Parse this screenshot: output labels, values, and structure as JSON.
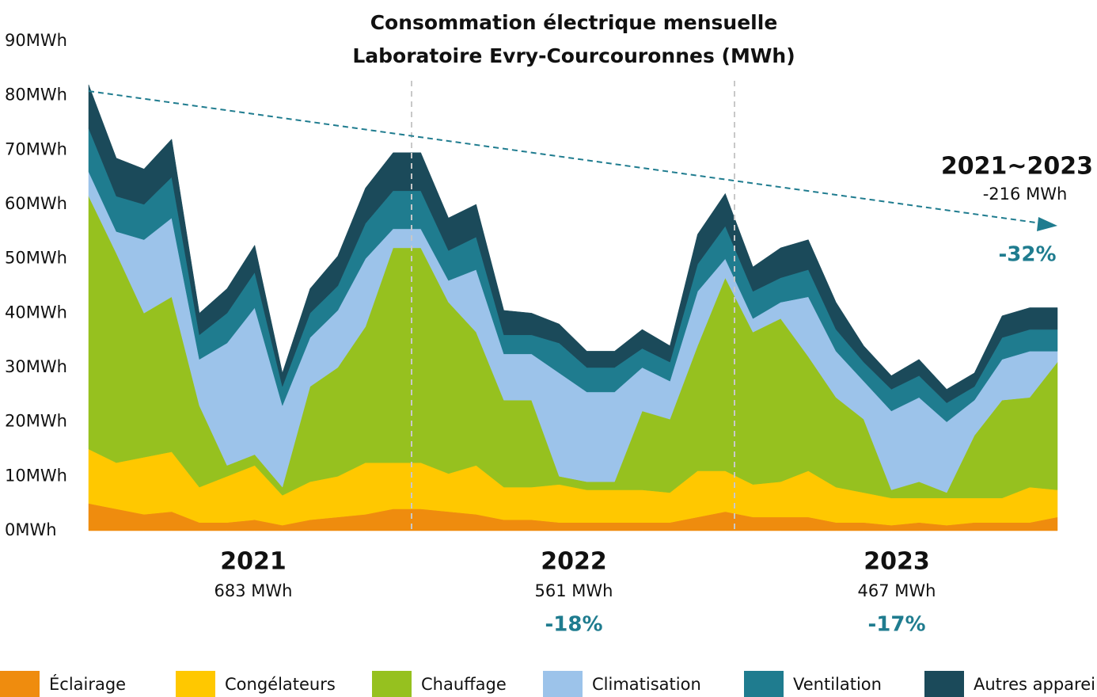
{
  "chart_data": {
    "type": "stacked_area",
    "title": [
      "Consommation électrique mensuelle",
      "Laboratoire Evry-Courcouronnes (MWh)"
    ],
    "categories": [
      null,
      null,
      null,
      null,
      null,
      null,
      null,
      null,
      null,
      null,
      null,
      null,
      null,
      null,
      null,
      null,
      null,
      null,
      null,
      null,
      null,
      null,
      null,
      null,
      null,
      null,
      null,
      null,
      null,
      null,
      null,
      null,
      null,
      null,
      null,
      null
    ],
    "ylim": [
      0,
      90
    ],
    "yticks": [
      {
        "value": 0,
        "label": "0MWh"
      },
      {
        "value": 10,
        "label": "10MWh"
      },
      {
        "value": 20,
        "label": "20MWh"
      },
      {
        "value": 30,
        "label": "30MWh"
      },
      {
        "value": 40,
        "label": "40MWh"
      },
      {
        "value": 50,
        "label": "50MWh"
      },
      {
        "value": 60,
        "label": "60MWh"
      },
      {
        "value": 70,
        "label": "70MWh"
      },
      {
        "value": 80,
        "label": "80MWh"
      },
      {
        "value": 90,
        "label": "90MWh"
      }
    ],
    "series": [
      {
        "name": "Éclairage",
        "color": "#ef8c0e",
        "values": [
          5,
          4,
          3,
          3.5,
          1.5,
          1.5,
          2,
          1,
          2,
          2.5,
          3,
          4,
          4,
          3.5,
          3,
          2,
          2,
          1.5,
          1.5,
          1.5,
          1.5,
          1.5,
          2.5,
          3.5,
          2.5,
          2.5,
          2.5,
          1.5,
          1.5,
          1,
          1.5,
          1,
          1.5,
          1.5,
          1.5,
          2.5
        ]
      },
      {
        "name": "Congélateurs",
        "color": "#ffc800",
        "values": [
          10,
          8.5,
          10.5,
          11,
          6.5,
          8.5,
          10,
          5.5,
          7,
          7.5,
          9.5,
          8.5,
          8.5,
          7,
          9,
          6,
          6,
          7,
          6,
          6,
          6,
          5.5,
          8.5,
          7.5,
          6,
          6.5,
          8.5,
          6.5,
          5.5,
          5,
          4.5,
          5,
          4.5,
          4.5,
          6.5,
          5
        ]
      },
      {
        "name": "Chauffage",
        "color": "#96c11f",
        "values": [
          46.5,
          38.5,
          26.5,
          28.5,
          15,
          2,
          2,
          1.5,
          17.5,
          20,
          25,
          39.5,
          39.5,
          31.5,
          24.5,
          16,
          16,
          1.5,
          1.5,
          1.5,
          14.5,
          13.5,
          23,
          35.5,
          28,
          30,
          21,
          16.5,
          13.5,
          1.5,
          3,
          1,
          11.5,
          18,
          16.5,
          23.5
        ]
      },
      {
        "name": "Climatisation",
        "color": "#9cc3ea",
        "values": [
          4.5,
          4,
          13.5,
          14.5,
          8.5,
          22.5,
          27,
          15,
          9,
          10.5,
          12.5,
          3.5,
          3.5,
          4,
          11.5,
          8.5,
          8.5,
          19,
          16.5,
          16.5,
          8,
          7,
          10,
          3.5,
          2.5,
          3,
          11,
          8.5,
          7,
          14.5,
          15.5,
          13,
          6.5,
          7.5,
          8.5,
          2
        ]
      },
      {
        "name": "Ventilation",
        "color": "#1f7c8f",
        "values": [
          8,
          6.5,
          6.5,
          7.5,
          4.5,
          5.5,
          6.5,
          3.5,
          4.5,
          4.5,
          6.5,
          7,
          7,
          5.5,
          6,
          3.5,
          3.5,
          5.5,
          4.5,
          4.5,
          3.5,
          3.5,
          5,
          6,
          5,
          4.5,
          5,
          4,
          3.5,
          4,
          4,
          3.5,
          2.5,
          4,
          4,
          4
        ]
      },
      {
        "name": "Autres appareils",
        "color": "#1b4a5a",
        "values": [
          8,
          7,
          6.5,
          7,
          4,
          4.5,
          5,
          2.5,
          4.5,
          5.5,
          6.5,
          7,
          7,
          6,
          6,
          4.5,
          4,
          3.5,
          3,
          3,
          3.5,
          3,
          5.5,
          6,
          4.5,
          5.5,
          5.5,
          5,
          3,
          2.5,
          3,
          2.5,
          2.5,
          4,
          4,
          4
        ]
      }
    ],
    "years": [
      {
        "name": "2021",
        "total": "683 MWh"
      },
      {
        "name": "2022",
        "total": "561 MWh",
        "change": "-18%"
      },
      {
        "name": "2023",
        "total": "467 MWh",
        "change": "-17%"
      }
    ],
    "trend": {
      "period": "2021~2023",
      "total": "-216 MWh",
      "change": "-32%"
    }
  }
}
